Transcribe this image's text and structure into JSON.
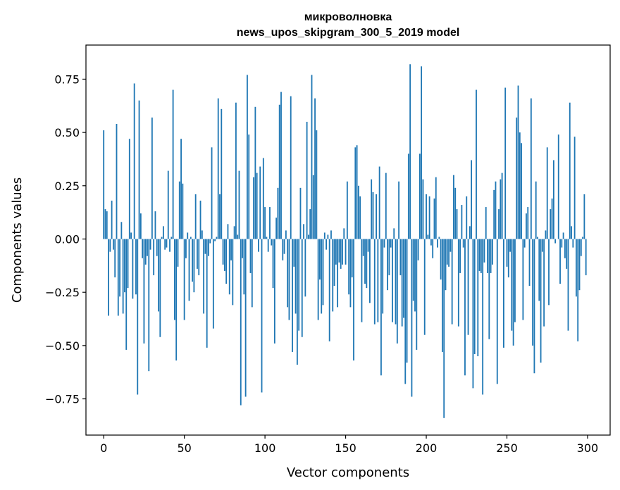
{
  "chart_data": {
    "type": "bar",
    "title": "микроволновка",
    "subtitle": "news_upos_skipgram_300_5_2019 model",
    "xlabel": "Vector components",
    "ylabel": "Components values",
    "xlim": [
      -11,
      314
    ],
    "ylim": [
      -0.92,
      0.91
    ],
    "xticks": [
      0,
      50,
      100,
      150,
      200,
      250,
      300
    ],
    "yticks": [
      -0.75,
      -0.5,
      -0.25,
      0.0,
      0.25,
      0.5,
      0.75
    ],
    "xtick_labels": [
      "0",
      "50",
      "100",
      "150",
      "200",
      "250",
      "300"
    ],
    "ytick_labels": [
      "−0.75",
      "−0.50",
      "−0.25",
      "0.00",
      "0.25",
      "0.50",
      "0.75"
    ],
    "grid": false,
    "color": "#1f77b4",
    "x_start": 0,
    "values": [
      0.51,
      0.14,
      0.13,
      -0.36,
      -0.06,
      0.18,
      -0.05,
      -0.18,
      0.54,
      -0.36,
      -0.27,
      0.08,
      -0.35,
      -0.25,
      -0.52,
      -0.23,
      0.47,
      0.03,
      -0.28,
      0.73,
      -0.26,
      -0.73,
      0.65,
      0.12,
      -0.09,
      -0.49,
      -0.12,
      -0.08,
      -0.62,
      -0.05,
      0.57,
      -0.17,
      0.13,
      -0.08,
      -0.34,
      -0.46,
      0.01,
      0.06,
      -0.05,
      -0.04,
      0.32,
      -0.06,
      0.01,
      0.7,
      -0.38,
      -0.57,
      -0.13,
      0.27,
      0.47,
      0.26,
      -0.38,
      -0.09,
      0.03,
      -0.29,
      0.01,
      -0.2,
      -0.25,
      0.21,
      -0.14,
      -0.17,
      0.18,
      0.04,
      -0.35,
      -0.07,
      -0.51,
      -0.08,
      -0.02,
      0.43,
      -0.42,
      -0.01,
      0.01,
      0.66,
      0.21,
      0.61,
      -0.12,
      -0.15,
      -0.21,
      0.07,
      -0.26,
      -0.1,
      -0.31,
      0.06,
      0.64,
      0.02,
      0.32,
      -0.78,
      -0.09,
      -0.26,
      -0.74,
      0.77,
      0.49,
      -0.16,
      -0.32,
      0.29,
      0.62,
      0.31,
      -0.06,
      0.34,
      -0.72,
      0.38,
      0.15,
      0.01,
      -0.06,
      0.15,
      -0.03,
      -0.23,
      -0.49,
      0.1,
      0.24,
      0.63,
      0.69,
      -0.1,
      -0.07,
      0.04,
      -0.32,
      -0.38,
      0.67,
      -0.53,
      -0.13,
      -0.35,
      -0.59,
      -0.43,
      0.24,
      -0.46,
      0.07,
      -0.27,
      0.55,
      0.02,
      0.14,
      0.77,
      0.3,
      0.66,
      0.51,
      -0.38,
      -0.19,
      -0.35,
      -0.31,
      0.03,
      -0.05,
      0.02,
      -0.48,
      0.04,
      -0.34,
      -0.22,
      -0.12,
      -0.32,
      -0.11,
      -0.14,
      -0.12,
      0.05,
      -0.12,
      0.27,
      -0.26,
      -0.32,
      -0.18,
      -0.57,
      0.43,
      0.44,
      0.25,
      0.2,
      -0.39,
      -0.08,
      -0.21,
      -0.23,
      -0.06,
      -0.3,
      0.28,
      0.22,
      -0.4,
      0.21,
      -0.39,
      0.34,
      -0.64,
      -0.35,
      -0.04,
      0.31,
      -0.24,
      -0.17,
      -0.04,
      -0.39,
      0.05,
      -0.4,
      -0.49,
      0.27,
      -0.17,
      -0.41,
      -0.37,
      -0.68,
      -0.58,
      0.4,
      0.82,
      -0.74,
      -0.29,
      -0.34,
      -0.52,
      -0.1,
      0.4,
      0.81,
      0.28,
      -0.45,
      0.21,
      0.02,
      0.2,
      -0.03,
      -0.09,
      0.19,
      0.29,
      -0.04,
      0.01,
      -0.19,
      -0.53,
      -0.84,
      -0.24,
      -0.12,
      -0.13,
      -0.06,
      -0.4,
      0.3,
      0.24,
      0.14,
      -0.41,
      -0.16,
      0.16,
      -0.04,
      -0.64,
      0.2,
      -0.45,
      0.06,
      0.37,
      -0.7,
      -0.54,
      0.7,
      -0.55,
      -0.15,
      -0.16,
      -0.73,
      -0.11,
      0.15,
      -0.16,
      -0.47,
      -0.16,
      -0.12,
      0.23,
      0.27,
      -0.68,
      0.14,
      0.28,
      0.31,
      -0.51,
      0.71,
      -0.13,
      -0.18,
      -0.06,
      -0.43,
      -0.5,
      -0.39,
      0.57,
      0.72,
      0.5,
      0.45,
      -0.38,
      -0.04,
      0.12,
      0.15,
      -0.22,
      0.66,
      -0.5,
      -0.63,
      0.27,
      0.01,
      -0.29,
      -0.58,
      -0.06,
      -0.41,
      0.04,
      0.43,
      -0.31,
      0.14,
      0.19,
      0.37,
      -0.02,
      0.0,
      0.49,
      -0.21,
      -0.04,
      0.03,
      -0.09,
      -0.14,
      -0.43,
      0.64,
      0.06,
      -0.04,
      0.48,
      -0.27,
      -0.48,
      -0.24,
      -0.08,
      0.01,
      0.21,
      -0.17
    ]
  }
}
